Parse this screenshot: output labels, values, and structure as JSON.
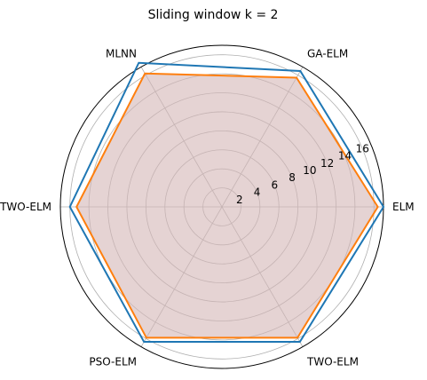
{
  "chart_data": {
    "type": "radar",
    "title": "Sliding window k = 2",
    "categories": [
      "ELM",
      "GA-ELM",
      "MLNN",
      "OTWO-ELM",
      "PSO-ELM",
      "TWO-ELM"
    ],
    "r_ticks": [
      "2",
      "4",
      "6",
      "8",
      "10",
      "12",
      "14",
      "16"
    ],
    "r_lim": [
      0,
      17
    ],
    "grid": true,
    "series": [
      {
        "values": [
          17.0,
          16.5,
          17.5,
          16.0,
          16.4,
          16.4
        ],
        "color": "#1f77b4",
        "fill": false
      },
      {
        "values": [
          16.4,
          15.7,
          16.2,
          15.3,
          15.9,
          15.9
        ],
        "color": "#ff7f0e",
        "fill": true,
        "fill_color": "#d3b5b5"
      }
    ]
  }
}
